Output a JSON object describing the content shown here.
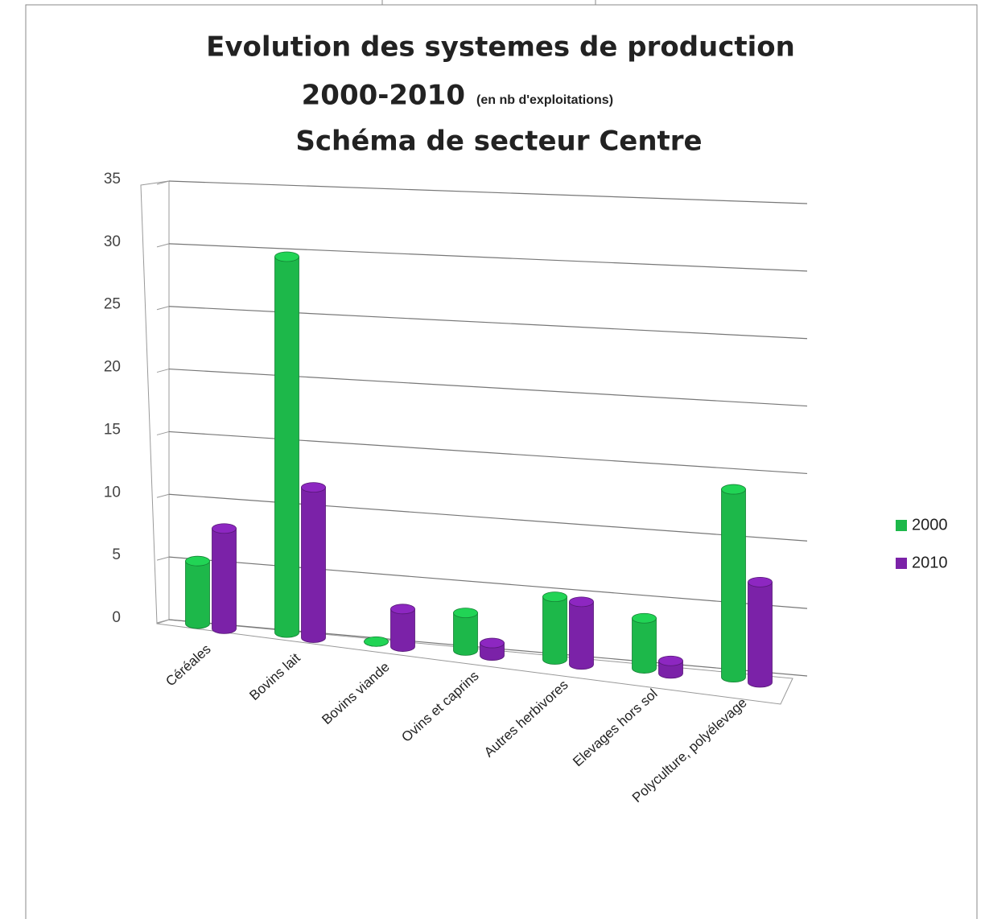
{
  "chart_data": {
    "type": "bar3d",
    "title": "Evolution des systemes de production",
    "title_line2": "2000-2010",
    "title_note": "(en nb d'exploitations)",
    "subtitle": "Schéma de secteur Centre",
    "categories": [
      "Céréales",
      "Bovins lait",
      "Bovins viande",
      "Ovins et caprins",
      "Autres herbivores",
      "Elevages hors sol",
      "Polyculture, polyélevage"
    ],
    "series": [
      {
        "name": "2000",
        "color": "#1db84a",
        "values": [
          5,
          30,
          0,
          3,
          5,
          4,
          15
        ]
      },
      {
        "name": "2010",
        "color": "#7b22a8",
        "values": [
          8,
          12,
          3,
          1,
          5,
          1,
          8
        ]
      }
    ],
    "ylim": [
      0,
      35
    ],
    "yticks": [
      0,
      5,
      10,
      15,
      20,
      25,
      30,
      35
    ],
    "grid": true,
    "legend": "right"
  }
}
